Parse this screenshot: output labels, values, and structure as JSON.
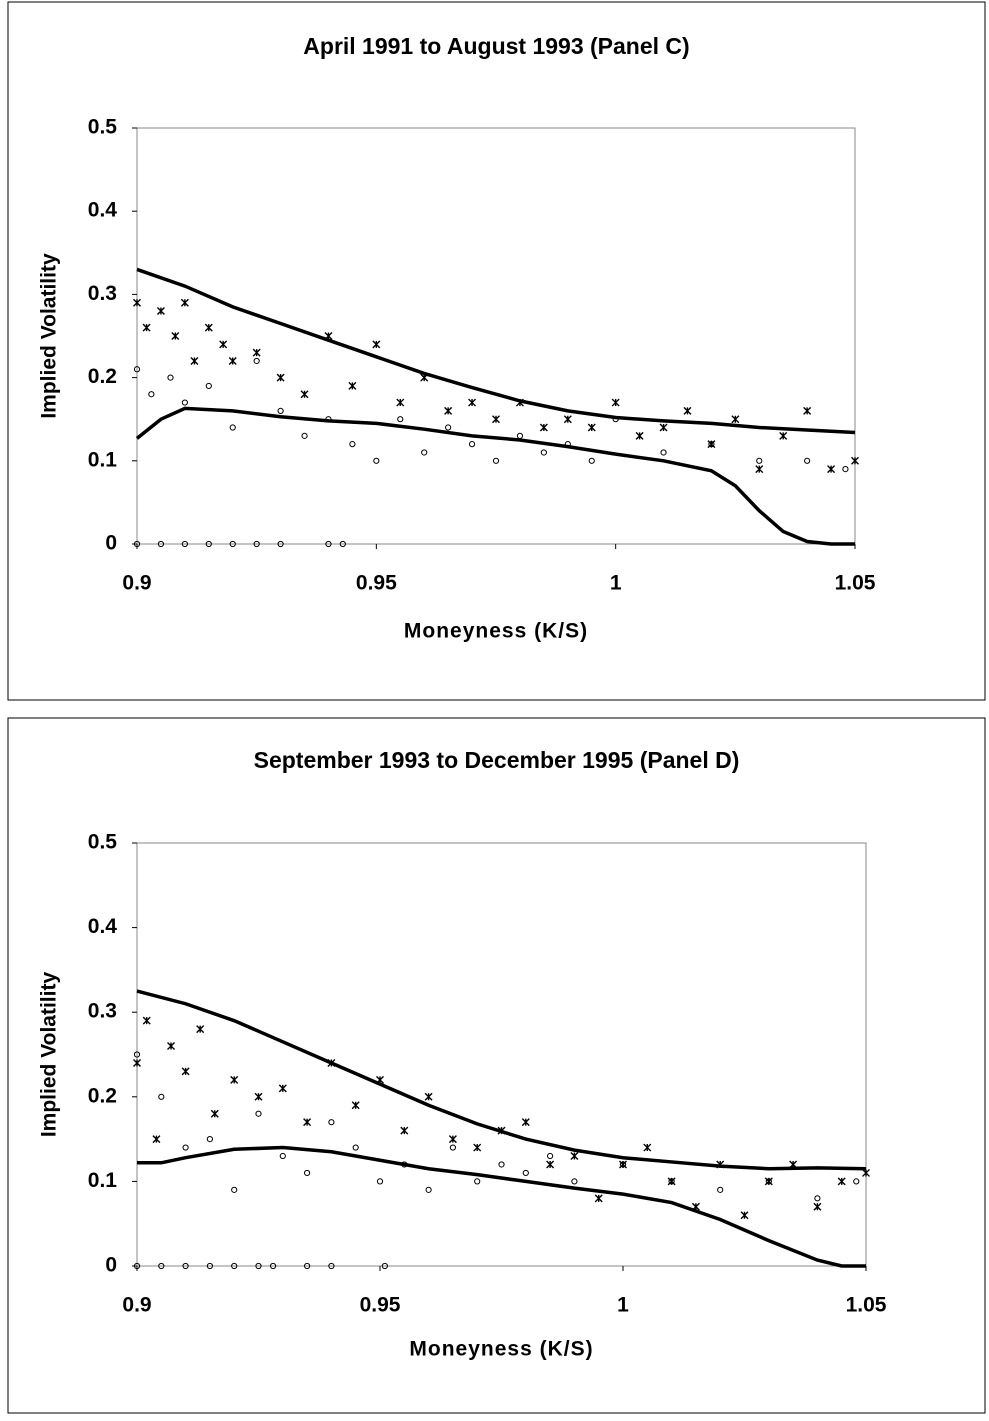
{
  "chart_data": [
    {
      "type": "scatter",
      "title": "April 1991 to August 1993 (Panel C)",
      "x_label": "Moneyness (K/S)",
      "y_label": "Implied Volatility",
      "xlim": [
        0.9,
        1.05
      ],
      "xticks": [
        0.9,
        0.95,
        1,
        1.05
      ],
      "ylim": [
        0,
        0.5
      ],
      "yticks": [
        0,
        0.1,
        0.2,
        0.3,
        0.4,
        0.5
      ],
      "series": [
        {
          "style": "line",
          "color": "#000000",
          "x": [
            0.9,
            0.91,
            0.92,
            0.93,
            0.94,
            0.95,
            0.96,
            0.97,
            0.98,
            0.99,
            1.0,
            1.01,
            1.02,
            1.03,
            1.04,
            1.05
          ],
          "values": [
            0.33,
            0.31,
            0.285,
            0.265,
            0.245,
            0.225,
            0.205,
            0.188,
            0.172,
            0.16,
            0.152,
            0.148,
            0.145,
            0.14,
            0.137,
            0.134
          ]
        },
        {
          "style": "line",
          "color": "#000000",
          "x": [
            0.9,
            0.905,
            0.91,
            0.92,
            0.93,
            0.94,
            0.95,
            0.96,
            0.97,
            0.98,
            0.99,
            1.0,
            1.01,
            1.02,
            1.025,
            1.03,
            1.035,
            1.04,
            1.045,
            1.05
          ],
          "values": [
            0.127,
            0.15,
            0.163,
            0.16,
            0.153,
            0.148,
            0.145,
            0.138,
            0.13,
            0.125,
            0.117,
            0.108,
            0.1,
            0.088,
            0.07,
            0.04,
            0.015,
            0.003,
            0,
            0
          ]
        },
        {
          "style": "star",
          "color": "#000000",
          "x": [
            0.9,
            0.902,
            0.905,
            0.908,
            0.91,
            0.912,
            0.915,
            0.918,
            0.92,
            0.925,
            0.93,
            0.935,
            0.94,
            0.945,
            0.95,
            0.955,
            0.96,
            0.965,
            0.97,
            0.975,
            0.98,
            0.985,
            0.99,
            0.995,
            1.0,
            1.005,
            1.01,
            1.015,
            1.02,
            1.025,
            1.03,
            1.035,
            1.04,
            1.045,
            1.05
          ],
          "values": [
            0.29,
            0.26,
            0.28,
            0.25,
            0.29,
            0.22,
            0.26,
            0.24,
            0.22,
            0.23,
            0.2,
            0.18,
            0.25,
            0.19,
            0.24,
            0.17,
            0.2,
            0.16,
            0.17,
            0.15,
            0.17,
            0.14,
            0.15,
            0.14,
            0.17,
            0.13,
            0.14,
            0.16,
            0.12,
            0.15,
            0.09,
            0.13,
            0.16,
            0.09,
            0.1
          ]
        },
        {
          "style": "circle",
          "color": "#000000",
          "x": [
            0.9,
            0.903,
            0.907,
            0.91,
            0.915,
            0.92,
            0.925,
            0.93,
            0.935,
            0.94,
            0.945,
            0.95,
            0.955,
            0.96,
            0.965,
            0.97,
            0.975,
            0.98,
            0.985,
            0.99,
            0.995,
            1.0,
            1.01,
            1.02,
            1.03,
            1.04,
            1.048,
            0.9,
            0.905,
            0.91,
            0.915,
            0.92,
            0.925,
            0.93,
            0.94,
            0.943
          ],
          "values": [
            0.21,
            0.18,
            0.2,
            0.17,
            0.19,
            0.14,
            0.22,
            0.16,
            0.13,
            0.15,
            0.12,
            0.1,
            0.15,
            0.11,
            0.14,
            0.12,
            0.1,
            0.13,
            0.11,
            0.12,
            0.1,
            0.15,
            0.11,
            0.12,
            0.1,
            0.1,
            0.09,
            0,
            0,
            0,
            0,
            0,
            0,
            0,
            0,
            0
          ]
        }
      ]
    },
    {
      "type": "scatter",
      "title": "September 1993 to December 1995 (Panel D)",
      "x_label": "Moneyness (K/S)",
      "y_label": "Implied Volatility",
      "xlim": [
        0.9,
        1.05
      ],
      "xticks": [
        0.9,
        0.95,
        1,
        1.05
      ],
      "ylim": [
        0,
        0.5
      ],
      "yticks": [
        0,
        0.1,
        0.2,
        0.3,
        0.4,
        0.5
      ],
      "series": [
        {
          "style": "line",
          "color": "#000000",
          "x": [
            0.9,
            0.91,
            0.92,
            0.93,
            0.94,
            0.95,
            0.96,
            0.97,
            0.98,
            0.99,
            1.0,
            1.01,
            1.02,
            1.03,
            1.04,
            1.05
          ],
          "values": [
            0.325,
            0.31,
            0.29,
            0.265,
            0.24,
            0.215,
            0.19,
            0.168,
            0.15,
            0.137,
            0.128,
            0.123,
            0.118,
            0.115,
            0.116,
            0.115
          ]
        },
        {
          "style": "line",
          "color": "#000000",
          "x": [
            0.9,
            0.905,
            0.91,
            0.92,
            0.93,
            0.94,
            0.95,
            0.96,
            0.97,
            0.98,
            0.99,
            1.0,
            1.01,
            1.02,
            1.03,
            1.04,
            1.045,
            1.05
          ],
          "values": [
            0.122,
            0.122,
            0.128,
            0.138,
            0.14,
            0.135,
            0.125,
            0.115,
            0.108,
            0.1,
            0.092,
            0.085,
            0.075,
            0.055,
            0.03,
            0.007,
            0,
            0
          ]
        },
        {
          "style": "star",
          "color": "#000000",
          "x": [
            0.9,
            0.902,
            0.904,
            0.907,
            0.91,
            0.913,
            0.916,
            0.92,
            0.925,
            0.93,
            0.935,
            0.94,
            0.945,
            0.95,
            0.955,
            0.96,
            0.965,
            0.97,
            0.975,
            0.98,
            0.985,
            0.99,
            0.995,
            1.0,
            1.005,
            1.01,
            1.015,
            1.02,
            1.025,
            1.03,
            1.035,
            1.04,
            1.045,
            1.05
          ],
          "values": [
            0.24,
            0.29,
            0.15,
            0.26,
            0.23,
            0.28,
            0.18,
            0.22,
            0.2,
            0.21,
            0.17,
            0.24,
            0.19,
            0.22,
            0.16,
            0.2,
            0.15,
            0.14,
            0.16,
            0.17,
            0.12,
            0.13,
            0.08,
            0.12,
            0.14,
            0.1,
            0.07,
            0.12,
            0.06,
            0.1,
            0.12,
            0.07,
            0.1,
            0.11
          ]
        },
        {
          "style": "circle",
          "color": "#000000",
          "x": [
            0.9,
            0.905,
            0.91,
            0.915,
            0.92,
            0.925,
            0.93,
            0.935,
            0.94,
            0.945,
            0.95,
            0.955,
            0.96,
            0.965,
            0.97,
            0.975,
            0.98,
            0.985,
            0.99,
            1.0,
            1.01,
            1.02,
            1.03,
            1.04,
            1.048,
            0.9,
            0.905,
            0.91,
            0.915,
            0.92,
            0.925,
            0.928,
            0.935,
            0.94,
            0.951
          ],
          "values": [
            0.25,
            0.2,
            0.14,
            0.15,
            0.09,
            0.18,
            0.13,
            0.11,
            0.17,
            0.14,
            0.1,
            0.12,
            0.09,
            0.14,
            0.1,
            0.12,
            0.11,
            0.13,
            0.1,
            0.12,
            0.1,
            0.09,
            0.1,
            0.08,
            0.1,
            0,
            0,
            0,
            0,
            0,
            0,
            0,
            0,
            0,
            0
          ]
        }
      ]
    }
  ]
}
